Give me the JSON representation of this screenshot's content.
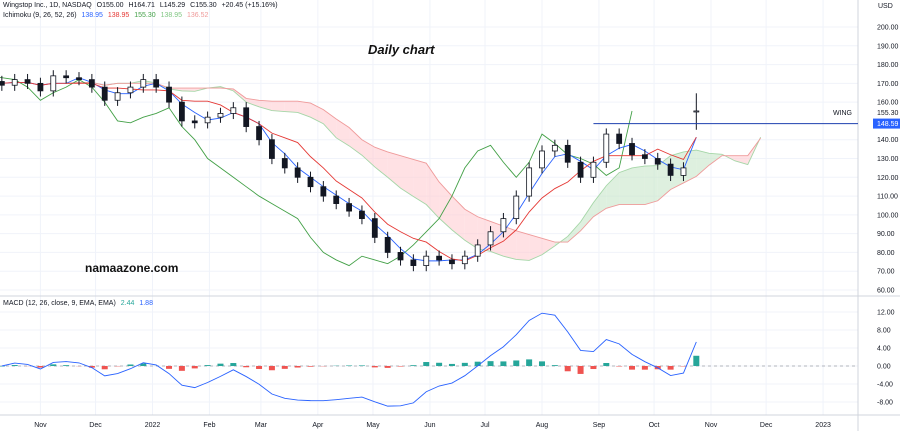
{
  "legend": {
    "symbol_line": "Wingstop Inc., 1D, NASDAQ",
    "open": "O155.00",
    "high": "H164.71",
    "low": "L145.29",
    "close": "C155.30",
    "change": "+20.45 (+15.16%)",
    "ichimoku_label": "Ichimoku (9, 26, 52, 26)",
    "ichimoku_values": [
      "138.95",
      "138.95",
      "155.30",
      "138.95",
      "136.52"
    ],
    "macd_label": "MACD (12, 26, close, 9, EMA, EMA)",
    "macd_values": [
      "2.44",
      "1.88"
    ]
  },
  "watermarks": {
    "title": "Daily chart",
    "site": "namaazone.com"
  },
  "colors": {
    "candle": "#131722",
    "tenkan": "#2962ff",
    "kijun": "#e53935",
    "chikou": "#43a047",
    "cloud_up": "#c8e6c9",
    "cloud_down": "#ffcdd2",
    "macd_line": "#2962ff",
    "hist_pos": "#26a69a",
    "hist_neg": "#ef5350",
    "price_line": "#1e40af",
    "grid": "#f0f3fa"
  },
  "chart_data": {
    "type": "candlestick",
    "currency_label": "USD",
    "symbol_tag": "WING",
    "last_price_label": "155.30",
    "price_line_label": "148.59",
    "price_line_value": 148.59,
    "price_axis": {
      "range": [
        55,
        207
      ],
      "ticks": [
        "200.00",
        "190.00",
        "180.00",
        "170.00",
        "160.00",
        "140.00",
        "130.00",
        "120.00",
        "110.00",
        "100.00",
        "90.00",
        "80.00",
        "70.00",
        "60.00"
      ]
    },
    "macd_axis": {
      "range": [
        -10.5,
        14
      ],
      "ticks": [
        "12.00",
        "8.00",
        "4.00",
        "0.00",
        "-4.00",
        "-8.00"
      ]
    },
    "x_ticks": [
      {
        "label": "Nov",
        "date": "2021-11-01"
      },
      {
        "label": "Dec",
        "date": "2021-12-01"
      },
      {
        "label": "2022",
        "date": "2022-01-01"
      },
      {
        "label": "Feb",
        "date": "2022-02-01"
      },
      {
        "label": "Mar",
        "date": "2022-03-01"
      },
      {
        "label": "Apr",
        "date": "2022-04-01"
      },
      {
        "label": "May",
        "date": "2022-05-01"
      },
      {
        "label": "Jun",
        "date": "2022-06-01"
      },
      {
        "label": "Jul",
        "date": "2022-07-01"
      },
      {
        "label": "Aug",
        "date": "2022-08-01"
      },
      {
        "label": "Sep",
        "date": "2022-09-01"
      },
      {
        "label": "Oct",
        "date": "2022-10-01"
      },
      {
        "label": "Nov",
        "date": "2022-11-01"
      },
      {
        "label": "Dec",
        "date": "2022-12-01"
      },
      {
        "label": "2023",
        "date": "2023-01-01"
      }
    ],
    "x_range": [
      "2021-10-10",
      "2023-01-20"
    ],
    "closes": [
      [
        "2021-10-11",
        169
      ],
      [
        "2021-10-18",
        172
      ],
      [
        "2021-10-25",
        170
      ],
      [
        "2021-11-01",
        166
      ],
      [
        "2021-11-08",
        174
      ],
      [
        "2021-11-15",
        173
      ],
      [
        "2021-11-22",
        172
      ],
      [
        "2021-11-29",
        168
      ],
      [
        "2021-12-06",
        161
      ],
      [
        "2021-12-13",
        165
      ],
      [
        "2021-12-20",
        168
      ],
      [
        "2021-12-27",
        172
      ],
      [
        "2022-01-03",
        168
      ],
      [
        "2022-01-10",
        160
      ],
      [
        "2022-01-17",
        150
      ],
      [
        "2022-01-24",
        149
      ],
      [
        "2022-01-31",
        152
      ],
      [
        "2022-02-07",
        154
      ],
      [
        "2022-02-14",
        157
      ],
      [
        "2022-02-21",
        147
      ],
      [
        "2022-02-28",
        140
      ],
      [
        "2022-03-07",
        130
      ],
      [
        "2022-03-14",
        125
      ],
      [
        "2022-03-21",
        120
      ],
      [
        "2022-03-28",
        115
      ],
      [
        "2022-04-04",
        110
      ],
      [
        "2022-04-11",
        106
      ],
      [
        "2022-04-18",
        102
      ],
      [
        "2022-04-25",
        98
      ],
      [
        "2022-05-02",
        88
      ],
      [
        "2022-05-09",
        80
      ],
      [
        "2022-05-16",
        76
      ],
      [
        "2022-05-23",
        73
      ],
      [
        "2022-05-30",
        78
      ],
      [
        "2022-06-06",
        76
      ],
      [
        "2022-06-13",
        74
      ],
      [
        "2022-06-20",
        78
      ],
      [
        "2022-06-27",
        84
      ],
      [
        "2022-07-04",
        91
      ],
      [
        "2022-07-11",
        98
      ],
      [
        "2022-07-18",
        110
      ],
      [
        "2022-07-25",
        125
      ],
      [
        "2022-08-01",
        134
      ],
      [
        "2022-08-08",
        137
      ],
      [
        "2022-08-15",
        128
      ],
      [
        "2022-08-22",
        120
      ],
      [
        "2022-08-29",
        128
      ],
      [
        "2022-09-05",
        143
      ],
      [
        "2022-09-12",
        138
      ],
      [
        "2022-09-19",
        132
      ],
      [
        "2022-09-26",
        130
      ],
      [
        "2022-10-03",
        127
      ],
      [
        "2022-10-10",
        121
      ],
      [
        "2022-10-17",
        125
      ],
      [
        "2022-10-24",
        155.3
      ]
    ],
    "last_candle": {
      "open": 155.0,
      "high": 164.71,
      "low": 145.29,
      "close": 155.3
    }
  }
}
